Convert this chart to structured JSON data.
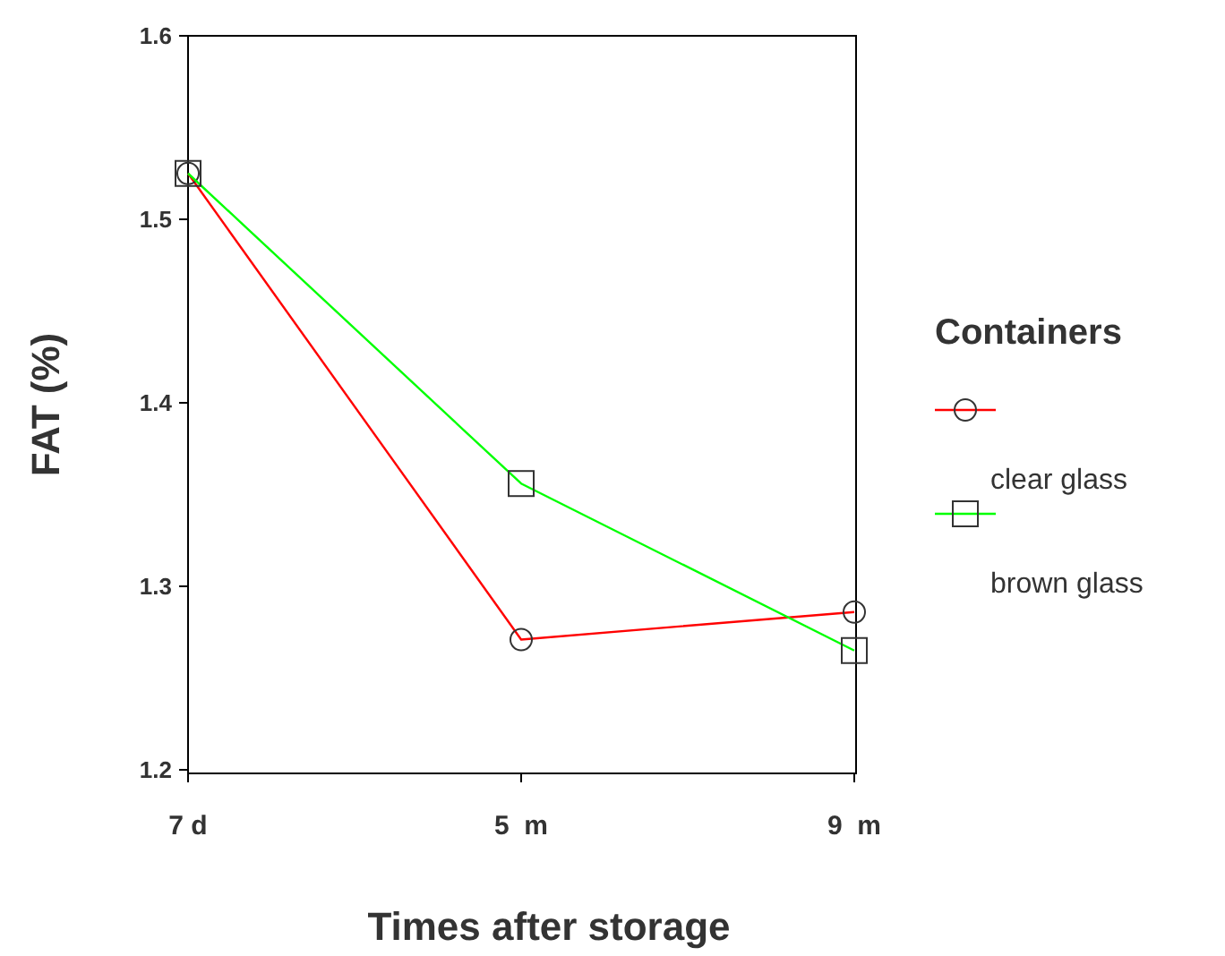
{
  "chart_data": {
    "type": "line",
    "xlabel": "Times after storage",
    "ylabel": "FAT (%)",
    "legend_title": "Containers",
    "categories": [
      "7 d",
      "5  m",
      "9  m"
    ],
    "series": [
      {
        "name": "clear glass",
        "color": "#ff0000",
        "marker": "circle",
        "values": [
          1.525,
          1.271,
          1.286
        ]
      },
      {
        "name": "brown glass",
        "color": "#00ff00",
        "marker": "square",
        "values": [
          1.525,
          1.356,
          1.265
        ]
      }
    ],
    "ylim": [
      1.2,
      1.6
    ],
    "yticks": [
      1.2,
      1.3,
      1.4,
      1.5,
      1.6
    ],
    "legend": "right",
    "grid": false
  }
}
